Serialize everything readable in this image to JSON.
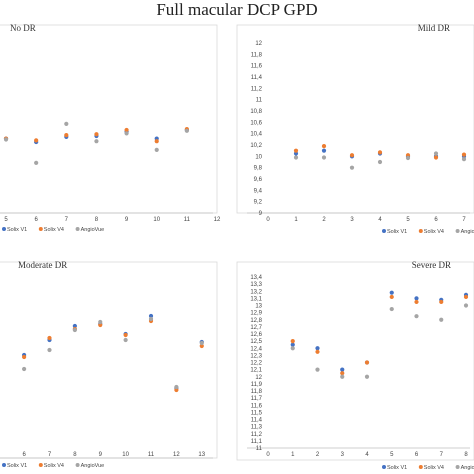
{
  "figure": {
    "title": "Full macular DCP GPD"
  },
  "series_colors": {
    "Solix V1": "#4472c4",
    "Solix V4": "#ed7d31",
    "AngioVue": "#a5a5a5"
  },
  "chart_data": [
    {
      "type": "scatter",
      "title": "No DR",
      "x_ticks": [
        "5",
        "6",
        "7",
        "8",
        "9",
        "10",
        "11",
        "12"
      ],
      "y_ticks": [],
      "xlim": [
        4.8,
        12
      ],
      "ylim": [
        0,
        1
      ],
      "legend": [
        "Solix V1",
        "Solix V4",
        "AngioVue"
      ],
      "legend_position": "bottom-left",
      "series": [
        {
          "name": "Solix V1",
          "x": [
            5,
            6,
            7,
            8,
            9,
            10,
            11
          ],
          "y": [
            0.43,
            0.41,
            0.44,
            0.445,
            0.47,
            0.43,
            0.48
          ]
        },
        {
          "name": "Solix V4",
          "x": [
            5,
            6,
            7,
            8,
            9,
            10,
            11
          ],
          "y": [
            0.43,
            0.42,
            0.45,
            0.455,
            0.48,
            0.415,
            0.485
          ]
        },
        {
          "name": "AngioVue",
          "x": [
            5,
            6,
            7,
            8,
            9,
            10,
            11
          ],
          "y": [
            0.425,
            0.29,
            0.515,
            0.415,
            0.46,
            0.365,
            0.475
          ]
        }
      ]
    },
    {
      "type": "scatter",
      "title": "Mild DR",
      "x_ticks": [
        "0",
        "1",
        "2",
        "3",
        "4",
        "5",
        "6",
        "7"
      ],
      "y_ticks": [
        "9",
        "9,2",
        "9,4",
        "9,6",
        "9,8",
        "10",
        "10,2",
        "10,4",
        "10,6",
        "10,8",
        "11",
        "11,2",
        "11,4",
        "11,6",
        "11,8",
        "12"
      ],
      "xlim": [
        0,
        7.5
      ],
      "ylim": [
        9,
        12
      ],
      "legend": [
        "Solix V1",
        "Solix V4",
        "Angio"
      ],
      "legend_position": "bottom-right",
      "series": [
        {
          "name": "Solix V1",
          "x": [
            1,
            2,
            3,
            4,
            5,
            6,
            7
          ],
          "y": [
            10.05,
            10.1,
            10.0,
            10.05,
            10.0,
            10.0,
            10.0
          ]
        },
        {
          "name": "Solix V4",
          "x": [
            1,
            2,
            3,
            4,
            5,
            6,
            7
          ],
          "y": [
            10.1,
            10.18,
            10.02,
            10.07,
            10.02,
            9.98,
            10.03
          ]
        },
        {
          "name": "Angio",
          "x": [
            1,
            2,
            3,
            4,
            5,
            6,
            7
          ],
          "y": [
            9.98,
            9.98,
            9.8,
            9.9,
            9.97,
            10.05,
            9.95
          ]
        }
      ]
    },
    {
      "type": "scatter",
      "title": "Moderate DR",
      "x_ticks": [
        "6",
        "7",
        "8",
        "9",
        "10",
        "11",
        "12",
        "13"
      ],
      "y_ticks": [],
      "xlim": [
        5.05,
        13.6
      ],
      "ylim": [
        0,
        1
      ],
      "legend": [
        "Solix V1",
        "Solix V4",
        "AngioVue"
      ],
      "legend_position": "bottom-left",
      "series": [
        {
          "name": "Solix V1",
          "x": [
            6,
            7,
            8,
            9,
            10,
            11,
            12,
            13
          ],
          "y": [
            0.515,
            0.59,
            0.66,
            0.67,
            0.62,
            0.71,
            0.35,
            0.58
          ]
        },
        {
          "name": "Solix V4",
          "x": [
            6,
            7,
            8,
            9,
            10,
            11,
            12,
            13
          ],
          "y": [
            0.505,
            0.6,
            0.645,
            0.665,
            0.615,
            0.685,
            0.34,
            0.56
          ]
        },
        {
          "name": "AngioVue",
          "x": [
            6,
            7,
            8,
            9,
            10,
            11,
            12,
            13
          ],
          "y": [
            0.445,
            0.54,
            0.64,
            0.68,
            0.59,
            0.695,
            0.355,
            0.575
          ]
        }
      ]
    },
    {
      "type": "scatter",
      "title": "Severe DR",
      "x_ticks": [
        "0",
        "1",
        "2",
        "3",
        "4",
        "5",
        "6",
        "7",
        "8"
      ],
      "y_ticks": [
        "11",
        "11,1",
        "11,2",
        "11,3",
        "11,4",
        "11,5",
        "11,6",
        "11,7",
        "11,8",
        "11,9",
        "12",
        "12,1",
        "12,2",
        "12,3",
        "12,4",
        "12,5",
        "12,6",
        "12,7",
        "12,8",
        "12,9",
        "13",
        "13,1",
        "13,2",
        "13,3",
        "13,4"
      ],
      "xlim": [
        0,
        8
      ],
      "ylim": [
        11,
        13.4
      ],
      "legend": [
        "Solix V1",
        "Solix V4",
        "AngioVue"
      ],
      "legend_position": "bottom-right",
      "series": [
        {
          "name": "Solix V1",
          "x": [
            1,
            2,
            3,
            4,
            5,
            6,
            7,
            8
          ],
          "y": [
            12.45,
            12.4,
            12.1,
            12.2,
            13.18,
            13.1,
            13.08,
            13.15
          ]
        },
        {
          "name": "Solix V4",
          "x": [
            1,
            2,
            3,
            4,
            5,
            6,
            7,
            8
          ],
          "y": [
            12.5,
            12.35,
            12.05,
            12.2,
            13.12,
            13.05,
            13.05,
            13.12
          ]
        },
        {
          "name": "AngioVue",
          "x": [
            1,
            2,
            3,
            4,
            5,
            6,
            7,
            8
          ],
          "y": [
            12.4,
            12.1,
            12.0,
            12.0,
            12.95,
            12.85,
            12.8,
            13.0
          ]
        }
      ]
    }
  ]
}
